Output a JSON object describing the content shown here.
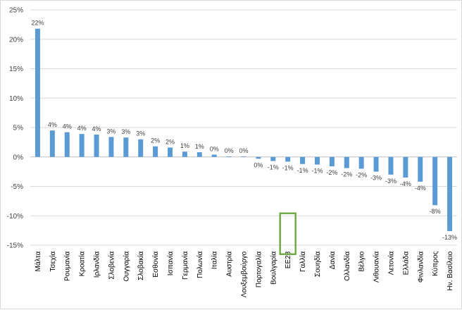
{
  "chart_data": {
    "type": "bar",
    "title": "",
    "xlabel": "",
    "ylabel": "",
    "ylim": [
      -15,
      25
    ],
    "yticks": [
      -15,
      -10,
      -5,
      0,
      5,
      10,
      15,
      20,
      25
    ],
    "ytick_labels": [
      "-15%",
      "-10%",
      "-5%",
      "0%",
      "5%",
      "10%",
      "15%",
      "20%",
      "25%"
    ],
    "grid": true,
    "legend": "none",
    "bar_color": "#5b9bd5",
    "highlight_color": "#70ad47",
    "highlight_category": "ΕΕ28",
    "categories": [
      "Μάλτα",
      "Τσεχία",
      "Ρουμανία",
      "Κροατία",
      "Ιρλανδία",
      "Σλοβενία",
      "Ουγγαρία",
      "Σλοβακία",
      "Εσθονία",
      "Ισπανία",
      "Γερμανία",
      "Πολωνία",
      "Ιταλία",
      "Αυστρία",
      "Λουξεμβούργο",
      "Πορτογαλία",
      "Βουλγαρία",
      "ΕΕ28",
      "Γαλλία",
      "Σουηδία",
      "Δανία",
      "Ολλανδία",
      "Βέλγιο",
      "Λιθουανία",
      "Λετονία",
      "Ελλάδα",
      "Φινλανδία",
      "Κύπρος",
      "Ην. Βασίλειο"
    ],
    "values": [
      21.8,
      4.5,
      4.2,
      3.9,
      3.8,
      3.4,
      3.3,
      3.0,
      1.8,
      1.6,
      0.9,
      0.8,
      0.4,
      0.1,
      0.1,
      -0.3,
      -0.7,
      -0.8,
      -1.2,
      -1.3,
      -1.6,
      -1.9,
      -2.0,
      -2.5,
      -3.0,
      -3.5,
      -4.2,
      -8.2,
      -12.6
    ],
    "data_labels": [
      "22%",
      "4%",
      "4%",
      "4%",
      "4%",
      "3%",
      "3%",
      "3%",
      "2%",
      "2%",
      "1%",
      "1%",
      "0%",
      "0%",
      "0%",
      "0%",
      "-1%",
      "-1%",
      "-1%",
      "-1%",
      "-2%",
      "-2%",
      "-2%",
      "-3%",
      "-3%",
      "-4%",
      "-4%",
      "-8%",
      "-13%"
    ]
  }
}
